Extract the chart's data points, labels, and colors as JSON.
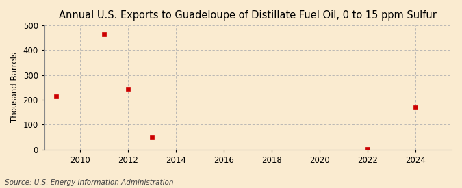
{
  "title": "Annual U.S. Exports to Guadeloupe of Distillate Fuel Oil, 0 to 15 ppm Sulfur",
  "ylabel": "Thousand Barrels",
  "source_text": "Source: U.S. Energy Information Administration",
  "x_data": [
    2009,
    2011,
    2012,
    2013,
    2022,
    2024
  ],
  "y_data": [
    213,
    463,
    243,
    50,
    2,
    170
  ],
  "marker_color": "#cc0000",
  "marker_size": 4,
  "background_color": "#faebd0",
  "grid_color": "#b0b0b0",
  "xlim": [
    2008.5,
    2025.5
  ],
  "ylim": [
    0,
    500
  ],
  "yticks": [
    0,
    100,
    200,
    300,
    400,
    500
  ],
  "xticks": [
    2010,
    2012,
    2014,
    2016,
    2018,
    2020,
    2022,
    2024
  ],
  "title_fontsize": 10.5,
  "ylabel_fontsize": 8.5,
  "tick_fontsize": 8.5,
  "source_fontsize": 7.5
}
